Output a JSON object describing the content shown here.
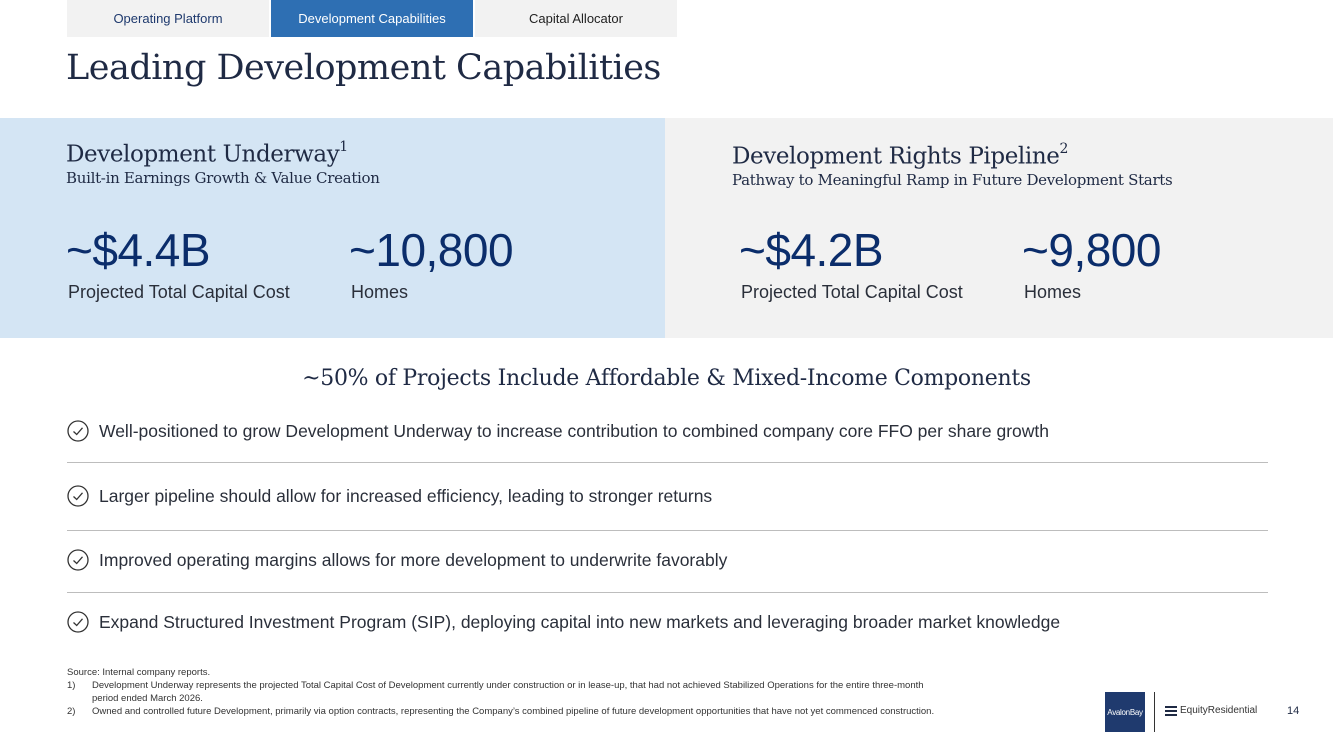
{
  "tabs": [
    {
      "label": "Operating Platform"
    },
    {
      "label": "Development Capabilities"
    },
    {
      "label": "Capital Allocator"
    }
  ],
  "title": "Leading Development Capabilities",
  "left_panel": {
    "title": "Development Underway",
    "sup": "1",
    "subtitle": "Built-in Earnings Growth & Value Creation",
    "metrics": [
      {
        "value": "~$4.4B",
        "label": "Projected Total Capital Cost"
      },
      {
        "value": "~10,800",
        "label": "Homes"
      }
    ]
  },
  "right_panel": {
    "title": "Development Rights Pipeline",
    "sup": "2",
    "subtitle": "Pathway to Meaningful Ramp in Future Development Starts",
    "metrics": [
      {
        "value": "~$4.2B",
        "label": "Projected Total Capital Cost"
      },
      {
        "value": "~9,800",
        "label": "Homes"
      }
    ]
  },
  "callout": "~50% of Projects Include Affordable & Mixed-Income Components",
  "bullets": [
    "Well-positioned to grow Development Underway to increase contribution to combined company core FFO per share growth",
    "Larger pipeline should allow for increased efficiency, leading to stronger returns",
    "Improved operating margins allows for more development to underwrite favorably",
    "Expand Structured Investment Program (SIP), deploying capital into new markets and leveraging broader market knowledge"
  ],
  "footnotes": {
    "source": "Source:  Internal company reports.",
    "notes": [
      {
        "num": "1)",
        "text": "Development Underway represents the projected Total Capital Cost of Development currently under construction or in lease-up, that had not achieved Stabilized Operations for the entire three-month period ended March 2026."
      },
      {
        "num": "2)",
        "text": "Owned and controlled future Development, primarily via option contracts, representing the Company’s combined pipeline of future development opportunities that have not yet commenced construction."
      }
    ]
  },
  "logos": {
    "avalon": "AvalonBay",
    "equity": "EquityResidential"
  },
  "page_number": "14",
  "colors": {
    "accent": "#2e6fb3",
    "navy": "#0b2d6b",
    "panel_blue": "#d4e5f4",
    "panel_gray": "#f2f2f2"
  }
}
